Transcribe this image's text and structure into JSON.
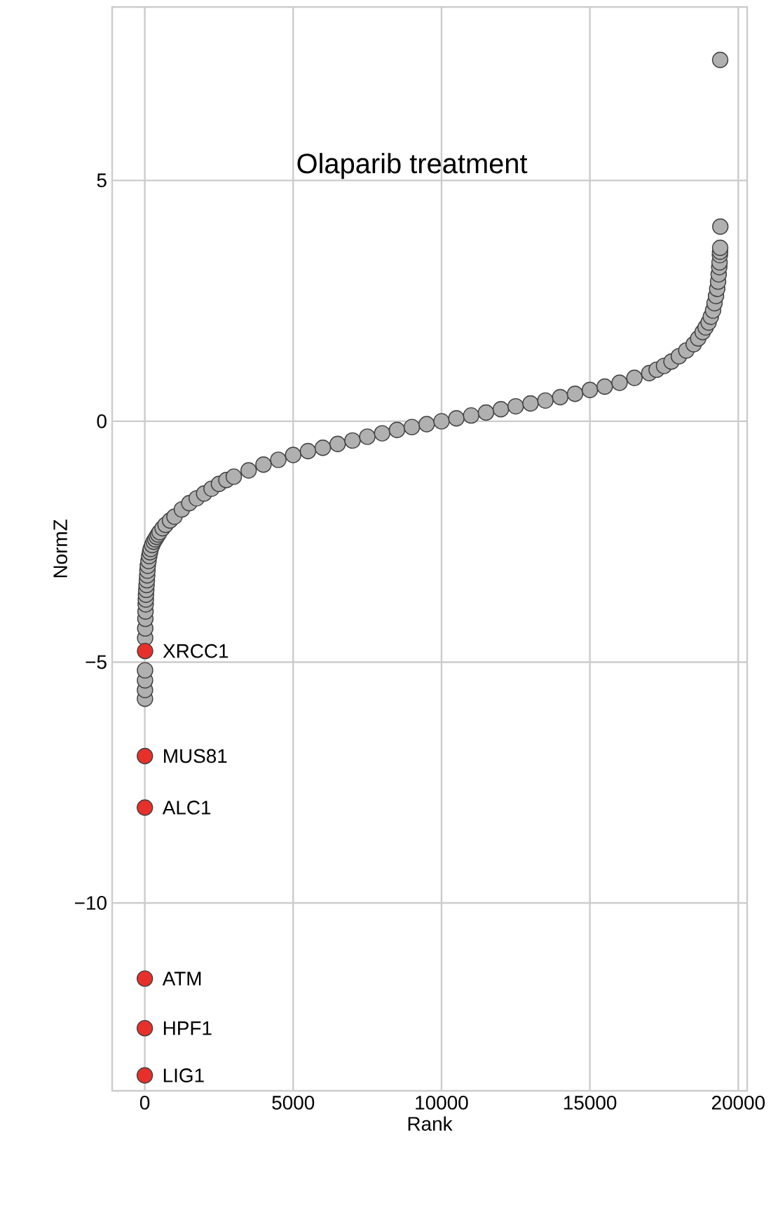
{
  "chart_data": {
    "type": "scatter",
    "title": "Olaparib treatment",
    "xlabel": "Rank",
    "ylabel": "NormZ",
    "xlim": [
      -1100,
      20300
    ],
    "ylim": [
      -13.9,
      8.6
    ],
    "xticks": [
      0,
      5000,
      10000,
      15000,
      20000
    ],
    "yticks": [
      {
        "value": -10,
        "label": "−10"
      },
      {
        "value": -5,
        "label": "−5"
      },
      0,
      5
    ],
    "grid": true,
    "marker": "circle",
    "series": [
      {
        "color": "#b0b0b0",
        "x": [
          6,
          7,
          8,
          9,
          12,
          15,
          20,
          25,
          30,
          35,
          40,
          50,
          60,
          70,
          80,
          90,
          100,
          125,
          150,
          175,
          200,
          250,
          300,
          350,
          400,
          450,
          500,
          600,
          700,
          850,
          1000,
          1250,
          1500,
          1750,
          2000,
          2250,
          2500,
          2750,
          3000,
          3500,
          4000,
          4500,
          5000,
          5500,
          6000,
          6500,
          7000,
          7500,
          8000,
          8500,
          9000,
          9500,
          10000,
          10500,
          11000,
          11500,
          12000,
          12500,
          13000,
          13500,
          14000,
          14500,
          15000,
          15500,
          16000,
          16500,
          17000,
          17250,
          17500,
          17750,
          18000,
          18250,
          18500,
          18650,
          18800,
          18900,
          19000,
          19075,
          19150,
          19200,
          19250,
          19290,
          19320,
          19340,
          19360,
          19370,
          19380,
          19385,
          19390,
          19395,
          19390
        ],
        "values": [
          -5.76,
          -5.58,
          -5.38,
          -5.17,
          -4.5,
          -4.3,
          -4.1,
          -3.95,
          -3.8,
          -3.7,
          -3.6,
          -3.5,
          -3.4,
          -3.3,
          -3.2,
          -3.1,
          -3.0,
          -2.9,
          -2.8,
          -2.72,
          -2.65,
          -2.57,
          -2.5,
          -2.45,
          -2.4,
          -2.35,
          -2.3,
          -2.22,
          -2.15,
          -2.06,
          -1.98,
          -1.83,
          -1.7,
          -1.6,
          -1.5,
          -1.4,
          -1.3,
          -1.22,
          -1.15,
          -1.02,
          -0.9,
          -0.8,
          -0.7,
          -0.62,
          -0.55,
          -0.47,
          -0.4,
          -0.32,
          -0.25,
          -0.18,
          -0.12,
          -0.06,
          0.0,
          0.06,
          0.12,
          0.18,
          0.25,
          0.31,
          0.37,
          0.43,
          0.5,
          0.57,
          0.65,
          0.72,
          0.8,
          0.9,
          1.0,
          1.07,
          1.15,
          1.24,
          1.35,
          1.47,
          1.6,
          1.72,
          1.85,
          1.95,
          2.05,
          2.17,
          2.3,
          2.45,
          2.6,
          2.75,
          2.9,
          3.05,
          3.2,
          3.3,
          3.45,
          3.52,
          3.6,
          4.04,
          7.5
        ]
      },
      {
        "color": "#e8302a",
        "x": [
          0,
          1,
          2,
          3,
          4,
          10
        ],
        "values": [
          -13.58,
          -12.6,
          -11.57,
          -8.02,
          -6.95,
          -4.77
        ]
      }
    ],
    "annotations": [
      {
        "text": "LIG1",
        "x": 0,
        "y": -13.58
      },
      {
        "text": "HPF1",
        "x": 1,
        "y": -12.6
      },
      {
        "text": "ATM",
        "x": 2,
        "y": -11.57
      },
      {
        "text": "ALC1",
        "x": 3,
        "y": -8.02
      },
      {
        "text": "MUS81",
        "x": 4,
        "y": -6.95
      },
      {
        "text": "XRCC1",
        "x": 10,
        "y": -4.77
      }
    ]
  }
}
